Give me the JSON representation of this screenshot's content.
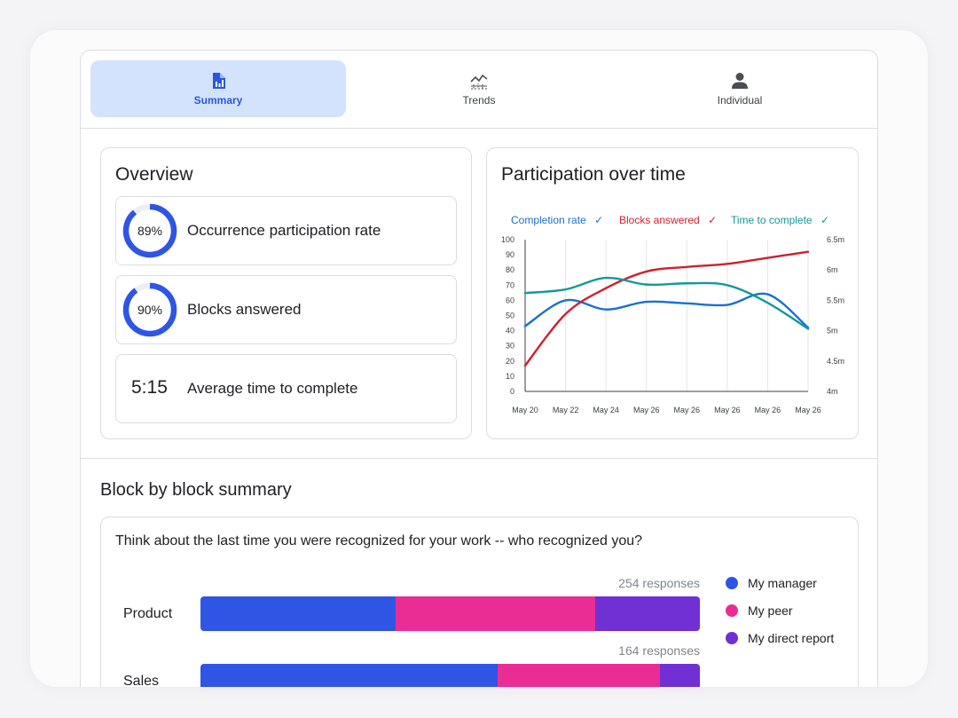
{
  "tabs": [
    {
      "label": "Summary",
      "icon": "summary-report-icon",
      "active": true
    },
    {
      "label": "Trends",
      "icon": "trends-chart-icon",
      "active": false
    },
    {
      "label": "Individual",
      "icon": "person-icon",
      "active": false
    }
  ],
  "overview": {
    "title": "Overview",
    "metrics": [
      {
        "value": "89%",
        "percent": 89,
        "label": "Occurrence participation rate"
      },
      {
        "value": "90%",
        "percent": 90,
        "label": "Blocks answered"
      },
      {
        "value": "5:15",
        "label": "Average time to complete"
      }
    ]
  },
  "participation": {
    "title": "Participation over time",
    "legend": [
      {
        "label": "Completion rate",
        "check": "✓",
        "color": "#1a6fd6"
      },
      {
        "label": "Blocks answered",
        "check": "✓",
        "color": "#d0202e"
      },
      {
        "label": "Time to complete",
        "check": "✓",
        "color": "#14999a"
      }
    ]
  },
  "chart_data": {
    "type": "line",
    "x": [
      "May 20",
      "May 22",
      "May 24",
      "May 26",
      "May 26",
      "May 26",
      "May 26",
      "May 26"
    ],
    "y_left_ticks": [
      "0",
      "10",
      "20",
      "30",
      "40",
      "50",
      "60",
      "70",
      "80",
      "90",
      "100"
    ],
    "y_right_ticks": [
      "4m",
      "4.5m",
      "5m",
      "5.5m",
      "6m",
      "6.5m"
    ],
    "ylim": [
      0,
      100
    ],
    "y2lim": [
      4,
      6.5
    ],
    "grid": "vertical",
    "series": [
      {
        "name": "Completion rate",
        "color": "#1a6fd6",
        "axis": "left",
        "values": [
          43,
          60,
          54,
          59,
          58,
          57,
          64,
          42
        ]
      },
      {
        "name": "Blocks answered",
        "color": "#d0202e",
        "axis": "left",
        "values": [
          17,
          51,
          68,
          79,
          82,
          84,
          88,
          92
        ]
      },
      {
        "name": "Time to complete",
        "color": "#14999a",
        "axis": "right",
        "values": [
          5.62,
          5.68,
          5.87,
          5.76,
          5.78,
          5.75,
          5.46,
          5.03
        ]
      }
    ]
  },
  "block_summary": {
    "title": "Block by block summary",
    "question": "Think about the last time you were recognized for your work -- who recognized you?",
    "legend": [
      {
        "label": "My manager",
        "color": "#2f55e4"
      },
      {
        "label": "My peer",
        "color": "#ea2d95"
      },
      {
        "label": "My direct report",
        "color": "#7030d4"
      }
    ],
    "rows": [
      {
        "label": "Product",
        "responses": "254 responses",
        "shares": [
          0.39,
          0.4,
          0.21
        ]
      },
      {
        "label": "Sales",
        "responses": "164 responses",
        "shares": [
          0.595,
          0.325,
          0.08
        ]
      }
    ]
  }
}
